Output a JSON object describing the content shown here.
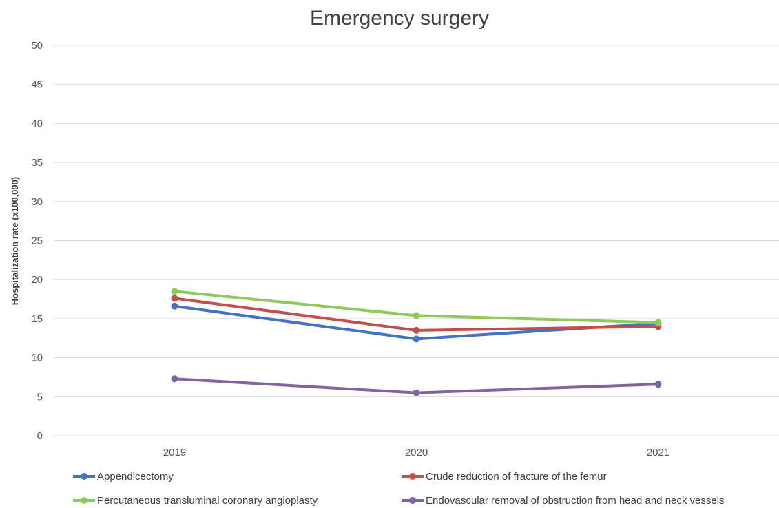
{
  "chart_data": {
    "type": "line",
    "title": "Emergency surgery",
    "xlabel": "",
    "ylabel": "Hospitalization rate (x100,000)",
    "categories": [
      "2019",
      "2020",
      "2021"
    ],
    "ylim": [
      0,
      50
    ],
    "yticks": [
      0,
      5,
      10,
      15,
      20,
      25,
      30,
      35,
      40,
      45,
      50
    ],
    "grid": true,
    "legend_position": "bottom",
    "series": [
      {
        "name": "Appendicectomy",
        "color": "#4472c4",
        "values": [
          16.6,
          12.4,
          14.4
        ]
      },
      {
        "name": "Crude reduction of fracture of the femur",
        "color": "#c0504d",
        "values": [
          17.6,
          13.5,
          14.0
        ]
      },
      {
        "name": "Percutaneous transluminal coronary angioplasty",
        "color": "#8fc95b",
        "values": [
          18.5,
          15.4,
          14.5
        ]
      },
      {
        "name": "Endovascular removal of obstruction from head and neck vessels",
        "color": "#8064a2",
        "values": [
          7.3,
          5.5,
          6.6
        ]
      }
    ]
  }
}
